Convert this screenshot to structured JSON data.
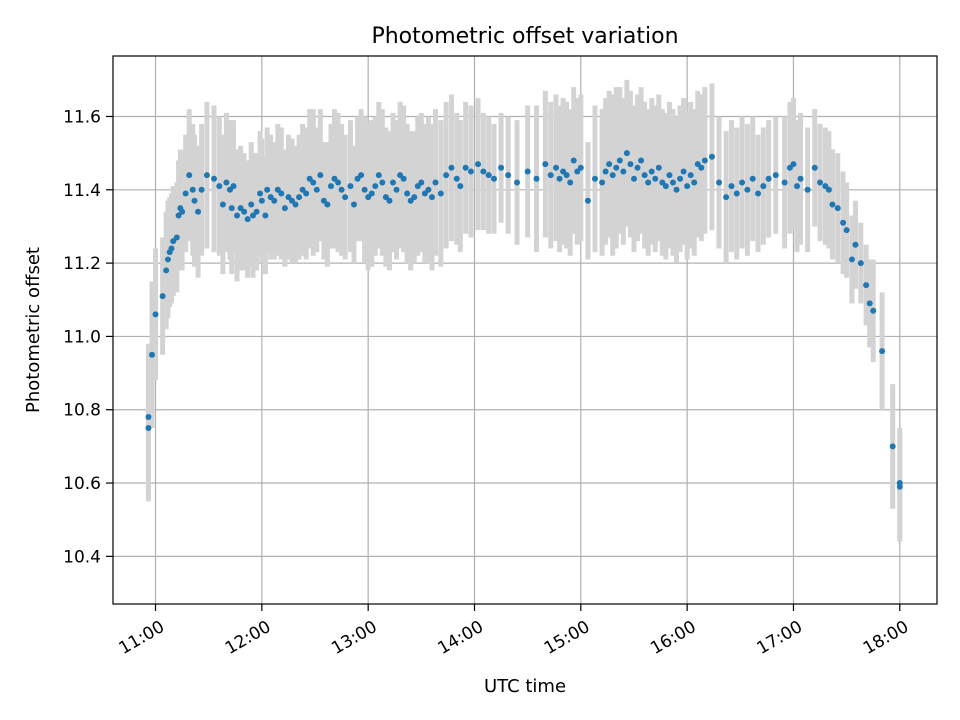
{
  "chart_data": {
    "type": "scatter",
    "title": "Photometric offset variation",
    "xlabel": "UTC time",
    "ylabel": "Photometric offset",
    "xlim": [
      "10:36",
      "18:21"
    ],
    "ylim": [
      10.27,
      11.765
    ],
    "grid": true,
    "legend": "none",
    "x_ticks": [
      "11:00",
      "12:00",
      "13:00",
      "14:00",
      "15:00",
      "16:00",
      "17:00",
      "18:00"
    ],
    "y_ticks": [
      "10.4",
      "10.6",
      "10.8",
      "11.0",
      "11.2",
      "11.4",
      "11.6"
    ],
    "point_color": "#1f77b4",
    "errorbar_color": "#d3d3d3",
    "series": [
      {
        "x": [
          "10:56",
          "10:56",
          "10:58",
          "11:00",
          "11:04",
          "11:06",
          "11:07",
          "11:08",
          "11:09",
          "11:10",
          "11:12",
          "11:13",
          "11:14",
          "11:15",
          "11:17",
          "11:19",
          "11:21",
          "11:22",
          "11:24",
          "11:26",
          "11:29",
          "11:33",
          "11:36",
          "11:38",
          "11:40",
          "11:42",
          "11:43",
          "11:44",
          "11:46",
          "11:48",
          "11:50",
          "11:52",
          "11:54",
          "11:55",
          "11:57",
          "11:59",
          "12:00",
          "12:02",
          "12:03",
          "12:05",
          "12:07",
          "12:09",
          "12:11",
          "12:13",
          "12:15",
          "12:17",
          "12:19",
          "12:21",
          "12:23",
          "12:25",
          "12:27",
          "12:29",
          "12:31",
          "12:33",
          "12:35",
          "12:37",
          "12:39",
          "12:41",
          "12:43",
          "12:45",
          "12:47",
          "12:50",
          "12:52",
          "12:54",
          "12:56",
          "12:58",
          "13:00",
          "13:02",
          "13:04",
          "13:06",
          "13:08",
          "13:10",
          "13:12",
          "13:14",
          "13:16",
          "13:18",
          "13:20",
          "13:22",
          "13:24",
          "13:26",
          "13:28",
          "13:30",
          "13:32",
          "13:34",
          "13:36",
          "13:38",
          "13:41",
          "13:44",
          "13:47",
          "13:50",
          "13:52",
          "13:55",
          "13:58",
          "14:02",
          "14:05",
          "14:08",
          "14:11",
          "14:15",
          "14:19",
          "14:24",
          "14:30",
          "14:35",
          "14:40",
          "14:43",
          "14:46",
          "14:48",
          "14:50",
          "14:52",
          "14:54",
          "14:56",
          "14:58",
          "15:00",
          "15:04",
          "15:08",
          "15:12",
          "15:14",
          "15:16",
          "15:18",
          "15:20",
          "15:22",
          "15:24",
          "15:26",
          "15:28",
          "15:30",
          "15:32",
          "15:34",
          "15:36",
          "15:38",
          "15:40",
          "15:42",
          "15:44",
          "15:46",
          "15:48",
          "15:50",
          "15:52",
          "15:54",
          "15:56",
          "15:58",
          "16:00",
          "16:02",
          "16:04",
          "16:06",
          "16:08",
          "16:10",
          "16:14",
          "16:18",
          "16:22",
          "16:25",
          "16:28",
          "16:31",
          "16:34",
          "16:37",
          "16:40",
          "16:43",
          "16:46",
          "16:50",
          "16:55",
          "16:58",
          "17:00",
          "17:02",
          "17:04",
          "17:08",
          "17:12",
          "17:15",
          "17:18",
          "17:20",
          "17:22",
          "17:25",
          "17:28",
          "17:30",
          "17:33",
          "17:35",
          "17:38",
          "17:41",
          "17:43",
          "17:45",
          "17:50",
          "17:56",
          "18:00",
          "18:00"
        ],
        "y": [
          10.75,
          10.78,
          10.95,
          11.06,
          11.11,
          11.18,
          11.21,
          11.23,
          11.24,
          11.26,
          11.27,
          11.33,
          11.35,
          11.34,
          11.39,
          11.44,
          11.4,
          11.37,
          11.34,
          11.4,
          11.44,
          11.43,
          11.41,
          11.36,
          11.42,
          11.4,
          11.35,
          11.41,
          11.33,
          11.35,
          11.34,
          11.32,
          11.36,
          11.33,
          11.34,
          11.39,
          11.37,
          11.33,
          11.4,
          11.38,
          11.37,
          11.4,
          11.39,
          11.35,
          11.38,
          11.37,
          11.36,
          11.38,
          11.4,
          11.39,
          11.43,
          11.42,
          11.4,
          11.44,
          11.37,
          11.36,
          11.41,
          11.43,
          11.42,
          11.4,
          11.38,
          11.41,
          11.36,
          11.43,
          11.44,
          11.4,
          11.38,
          11.39,
          11.41,
          11.44,
          11.42,
          11.38,
          11.37,
          11.42,
          11.4,
          11.44,
          11.43,
          11.39,
          11.37,
          11.38,
          11.41,
          11.42,
          11.39,
          11.4,
          11.38,
          11.42,
          11.39,
          11.44,
          11.46,
          11.43,
          11.41,
          11.46,
          11.45,
          11.47,
          11.45,
          11.44,
          11.43,
          11.46,
          11.44,
          11.42,
          11.45,
          11.43,
          11.47,
          11.44,
          11.46,
          11.43,
          11.45,
          11.44,
          11.42,
          11.48,
          11.45,
          11.46,
          11.37,
          11.43,
          11.42,
          11.45,
          11.47,
          11.44,
          11.46,
          11.48,
          11.45,
          11.5,
          11.47,
          11.43,
          11.46,
          11.48,
          11.44,
          11.42,
          11.45,
          11.43,
          11.46,
          11.42,
          11.41,
          11.44,
          11.42,
          11.4,
          11.43,
          11.45,
          11.41,
          11.44,
          11.42,
          11.47,
          11.46,
          11.48,
          11.49,
          11.42,
          11.38,
          11.41,
          11.39,
          11.42,
          11.4,
          11.43,
          11.39,
          11.41,
          11.43,
          11.44,
          11.42,
          11.46,
          11.47,
          11.41,
          11.43,
          11.4,
          11.46,
          11.42,
          11.41,
          11.4,
          11.36,
          11.35,
          11.31,
          11.29,
          11.21,
          11.25,
          11.2,
          11.14,
          11.09,
          11.07,
          10.96,
          10.7,
          10.6,
          10.59
        ],
        "err": [
          0.2,
          0.2,
          0.2,
          0.18,
          0.16,
          0.16,
          0.16,
          0.15,
          0.15,
          0.15,
          0.15,
          0.15,
          0.16,
          0.16,
          0.16,
          0.18,
          0.18,
          0.18,
          0.18,
          0.18,
          0.2,
          0.2,
          0.19,
          0.19,
          0.19,
          0.19,
          0.18,
          0.18,
          0.18,
          0.17,
          0.16,
          0.16,
          0.17,
          0.17,
          0.16,
          0.17,
          0.17,
          0.16,
          0.17,
          0.17,
          0.16,
          0.18,
          0.18,
          0.16,
          0.17,
          0.17,
          0.16,
          0.17,
          0.18,
          0.18,
          0.19,
          0.2,
          0.17,
          0.18,
          0.16,
          0.17,
          0.17,
          0.19,
          0.19,
          0.18,
          0.17,
          0.18,
          0.16,
          0.17,
          0.18,
          0.2,
          0.2,
          0.2,
          0.19,
          0.2,
          0.2,
          0.19,
          0.19,
          0.19,
          0.19,
          0.2,
          0.2,
          0.19,
          0.19,
          0.18,
          0.19,
          0.19,
          0.19,
          0.2,
          0.2,
          0.2,
          0.2,
          0.2,
          0.2,
          0.18,
          0.18,
          0.18,
          0.18,
          0.18,
          0.16,
          0.16,
          0.15,
          0.15,
          0.16,
          0.17,
          0.18,
          0.2,
          0.2,
          0.2,
          0.2,
          0.2,
          0.2,
          0.2,
          0.2,
          0.2,
          0.2,
          0.2,
          0.16,
          0.2,
          0.2,
          0.2,
          0.2,
          0.22,
          0.22,
          0.2,
          0.2,
          0.2,
          0.2,
          0.2,
          0.2,
          0.2,
          0.2,
          0.2,
          0.2,
          0.2,
          0.2,
          0.2,
          0.2,
          0.2,
          0.2,
          0.2,
          0.2,
          0.2,
          0.2,
          0.2,
          0.2,
          0.2,
          0.2,
          0.2,
          0.2,
          0.18,
          0.18,
          0.18,
          0.18,
          0.18,
          0.18,
          0.17,
          0.16,
          0.16,
          0.16,
          0.16,
          0.18,
          0.18,
          0.18,
          0.18,
          0.18,
          0.17,
          0.16,
          0.16,
          0.16,
          0.16,
          0.15,
          0.15,
          0.14,
          0.13,
          0.12,
          0.12,
          0.11,
          0.11,
          0.12,
          0.14,
          0.16,
          0.17,
          0.15,
          0.15
        ]
      }
    ]
  }
}
